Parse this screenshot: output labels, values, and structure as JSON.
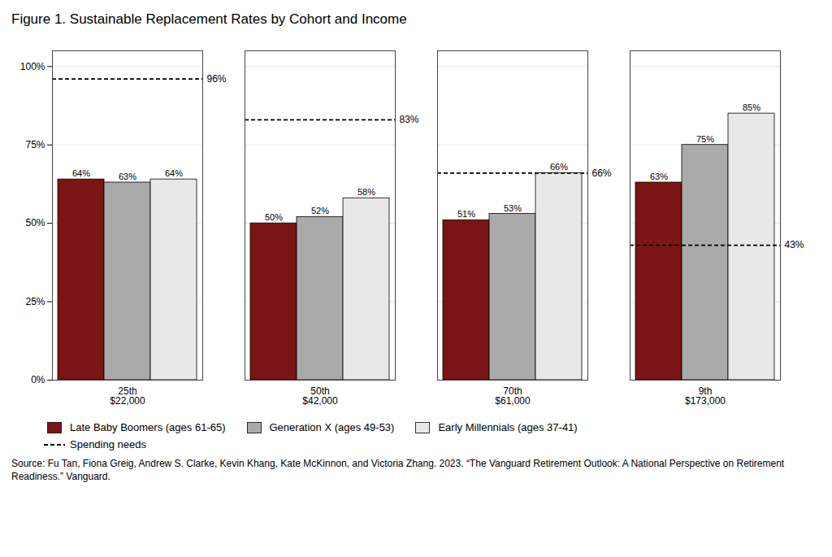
{
  "chart_data": {
    "type": "bar",
    "title": "Figure 1. Sustainable Replacement Rates by Cohort and Income",
    "caption": "Source: Fu Tan, Fiona Greig, Andrew S. Clarke, Kevin Khang, Kate McKinnon, and Victoria Zhang. 2023. “The Vanguard Retirement Outlook: A National Perspective on Retirement Readiness.” Vanguard.",
    "categories": [
      "25th\n$22,000",
      "50th\n$42,000",
      "70th\n$61,000",
      "9th\n$173,000"
    ],
    "series": [
      {
        "name": "Late Baby Boomers (ages 61-65)",
        "color": "#7B1515",
        "values": [
          0.64,
          0.5,
          0.51,
          0.63
        ],
        "value_labels": [
          "64%",
          "50%",
          "51%",
          "63%"
        ]
      },
      {
        "name": "Generation X (ages 49-53)",
        "color": "#AAAAAA",
        "values": [
          0.63,
          0.52,
          0.53,
          0.75
        ],
        "value_labels": [
          "63%",
          "52%",
          "53%",
          "75%"
        ]
      },
      {
        "name": "Early Millennials (ages 37-41)",
        "color": "#E8E8E8",
        "values": [
          0.64,
          0.58,
          0.66,
          0.85
        ],
        "value_labels": [
          "64%",
          "58%",
          "66%",
          "85%"
        ]
      },
      {
        "name": "Spending needs",
        "type": "segment",
        "line_style": "dashed",
        "color": "#000000",
        "values": [
          0.96,
          0.83,
          0.66,
          0.43
        ],
        "value_labels": [
          "96%",
          "83%",
          "66%",
          "43%"
        ]
      }
    ],
    "ylim": [
      0,
      1.05
    ],
    "yticks": [
      {
        "value": 0,
        "label": "0%"
      },
      {
        "value": 0.25,
        "label": "25%"
      },
      {
        "value": 0.5,
        "label": "50%"
      },
      {
        "value": 0.75,
        "label": "75%"
      },
      {
        "value": 1.0,
        "label": "100%"
      }
    ],
    "grid": true,
    "data_labels": true,
    "legend": "bottom"
  }
}
